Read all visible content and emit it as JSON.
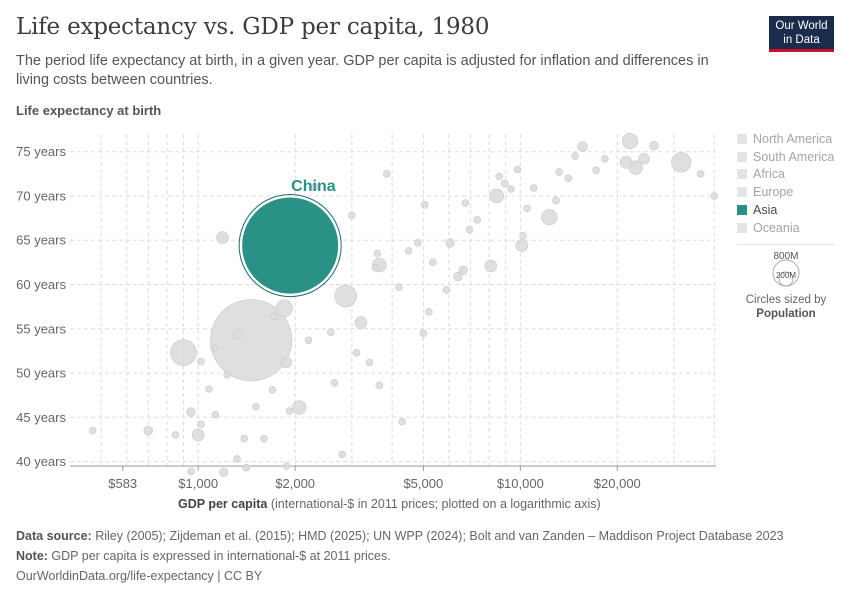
{
  "header": {
    "title": "Life expectancy vs. GDP per capita, 1980",
    "subtitle": "The period life expectancy at birth, in a given year. GDP per capita is adjusted for inflation and differences in living costs between countries.",
    "logo_line1": "Our World",
    "logo_line2": "in Data"
  },
  "colors": {
    "highlight": "#2a9187",
    "muted": "#dcdcdc",
    "muted_stroke": "#c9c9c9",
    "grid": "#dddddd"
  },
  "chart_data": {
    "type": "scatter",
    "title": "Life expectancy vs. GDP per capita, 1980",
    "ylabel": "Life expectancy at birth",
    "xlabel_bold": "GDP per capita",
    "xlabel_rest": " (international-$ in 2011 prices; plotted on a logarithmic axis)",
    "x_scale": "log",
    "xlim": [
      400,
      40500
    ],
    "ylim": [
      39.5,
      77
    ],
    "x_ticks": [
      583,
      1000,
      2000,
      5000,
      10000,
      20000
    ],
    "x_tick_labels": [
      "$583",
      "$1,000",
      "$2,000",
      "$5,000",
      "$10,000",
      "$20,000"
    ],
    "y_ticks": [
      40,
      45,
      50,
      55,
      60,
      65,
      70,
      75
    ],
    "y_tick_labels": [
      "40 years",
      "45 years",
      "50 years",
      "55 years",
      "60 years",
      "65 years",
      "70 years",
      "75 years"
    ],
    "grid": true,
    "legend": [
      "North America",
      "South America",
      "Africa",
      "Europe",
      "Asia",
      "Oceania"
    ],
    "legend_active": "Asia",
    "size_legend": {
      "large": "800M",
      "small": "200M",
      "note_line": "Circles sized by",
      "note_bold": "Population"
    },
    "highlight": {
      "name": "China",
      "gdp": 1930,
      "life_exp": 64.4,
      "population_m": 980
    },
    "points": [
      [
        1460,
        53.7,
        690
      ],
      [
        700,
        43.5,
        8
      ],
      [
        900,
        52.3,
        70
      ],
      [
        1190,
        65.3,
        15
      ],
      [
        1850,
        57.3,
        30
      ],
      [
        2300,
        71.0,
        5
      ],
      [
        2580,
        62.5,
        6
      ],
      [
        2870,
        58.7,
        50
      ],
      [
        3200,
        55.7,
        15
      ],
      [
        3000,
        67.8,
        5
      ],
      [
        3650,
        62.2,
        20
      ],
      [
        3550,
        61.9,
        5
      ],
      [
        3600,
        63.5,
        5
      ],
      [
        3850,
        72.5,
        5
      ],
      [
        4200,
        59.7,
        5
      ],
      [
        4500,
        63.8,
        5
      ],
      [
        4800,
        64.7,
        5
      ],
      [
        5050,
        69.0,
        5
      ],
      [
        5350,
        62.5,
        5
      ],
      [
        6050,
        64.7,
        8
      ],
      [
        5900,
        59.4,
        5
      ],
      [
        5200,
        56.9,
        5
      ],
      [
        6400,
        60.9,
        8
      ],
      [
        6650,
        61.6,
        8
      ],
      [
        6750,
        69.2,
        5
      ],
      [
        6950,
        66.2,
        5
      ],
      [
        7350,
        67.3,
        5
      ],
      [
        8100,
        62.1,
        15
      ],
      [
        8450,
        70.0,
        20
      ],
      [
        8600,
        72.2,
        5
      ],
      [
        8950,
        71.4,
        5
      ],
      [
        9350,
        70.8,
        5
      ],
      [
        9800,
        73.0,
        5
      ],
      [
        10100,
        64.4,
        15
      ],
      [
        10200,
        65.5,
        5
      ],
      [
        10500,
        68.6,
        5
      ],
      [
        11000,
        70.9,
        5
      ],
      [
        12300,
        67.6,
        25
      ],
      [
        12900,
        69.5,
        5
      ],
      [
        13200,
        72.7,
        5
      ],
      [
        14100,
        72.0,
        5
      ],
      [
        14800,
        74.5,
        5
      ],
      [
        15600,
        75.6,
        10
      ],
      [
        17200,
        72.9,
        5
      ],
      [
        18300,
        74.2,
        5
      ],
      [
        21300,
        73.8,
        15
      ],
      [
        21900,
        76.2,
        25
      ],
      [
        22800,
        73.2,
        20
      ],
      [
        24200,
        74.2,
        12
      ],
      [
        26000,
        75.7,
        8
      ],
      [
        31600,
        73.8,
        40
      ],
      [
        36300,
        72.5,
        5
      ],
      [
        40000,
        70.0,
        5
      ],
      [
        1000,
        43.0,
        15
      ],
      [
        1020,
        44.2,
        5
      ],
      [
        1080,
        48.2,
        5
      ],
      [
        1130,
        45.3,
        5
      ],
      [
        1230,
        49.8,
        5
      ],
      [
        1320,
        40.3,
        5
      ],
      [
        1390,
        42.6,
        5
      ],
      [
        1510,
        46.2,
        5
      ],
      [
        1600,
        42.6,
        5
      ],
      [
        1700,
        48.1,
        5
      ],
      [
        1720,
        56.4,
        5
      ],
      [
        1880,
        51.2,
        12
      ],
      [
        1920,
        45.7,
        5
      ],
      [
        2060,
        46.1,
        20
      ],
      [
        2200,
        53.7,
        5
      ],
      [
        2650,
        48.9,
        5
      ],
      [
        3100,
        52.3,
        5
      ],
      [
        3400,
        51.2,
        5
      ],
      [
        3650,
        48.6,
        5
      ],
      [
        4300,
        44.5,
        5
      ],
      [
        5000,
        54.5,
        5
      ],
      [
        470,
        43.5,
        5
      ],
      [
        850,
        43.0,
        5
      ],
      [
        950,
        45.6,
        8
      ],
      [
        1200,
        38.8,
        8
      ],
      [
        1330,
        54.4,
        8
      ],
      [
        1410,
        39.3,
        5
      ],
      [
        1880,
        39.5,
        5
      ],
      [
        1020,
        51.3,
        5
      ],
      [
        2800,
        40.8,
        5
      ],
      [
        950,
        38.9,
        5
      ],
      [
        1120,
        52.8,
        5
      ],
      [
        2580,
        54.6,
        5
      ]
    ]
  },
  "footer": {
    "source_label": "Data source:",
    "source_text": " Riley (2005); Zijdeman et al. (2015); HMD (2025); UN WPP (2024); Bolt and van Zanden – Maddison Project Database 2023",
    "note_label": "Note:",
    "note_text": " GDP per capita is expressed in international-$ at 2011 prices.",
    "link_text": "OurWorldinData.org/life-expectancy",
    "license": " | CC BY"
  }
}
